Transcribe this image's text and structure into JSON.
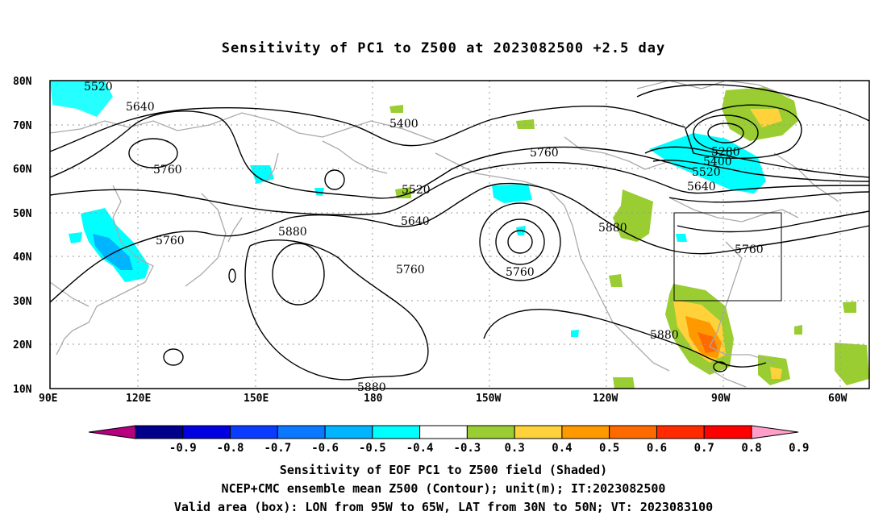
{
  "title": "Sensitivity of PC1 to Z500 at 2023082500 +2.5 day",
  "map": {
    "lon_labels": [
      "90E",
      "120E",
      "150E",
      "180",
      "150W",
      "120W",
      "90W",
      "60W"
    ],
    "lat_labels": [
      "80N",
      "70N",
      "60N",
      "50N",
      "40N",
      "30N",
      "20N",
      "10N"
    ],
    "contour_labels": [
      "5520",
      "5640",
      "5760",
      "5400",
      "5760",
      "5520",
      "5640",
      "5760",
      "5880",
      "5760",
      "5760",
      "5880",
      "5280",
      "5400",
      "5520",
      "5640",
      "5760",
      "5880",
      "5880"
    ],
    "valid_box": {
      "lon_w": "95W",
      "lon_e": "65W",
      "lat_s": "30N",
      "lat_n": "50N"
    }
  },
  "colorbar": {
    "labels": [
      "-0.9",
      "-0.8",
      "-0.7",
      "-0.6",
      "-0.5",
      "-0.4",
      "-0.3",
      "0.3",
      "0.4",
      "0.5",
      "0.6",
      "0.7",
      "0.8",
      "0.9"
    ],
    "colors": [
      "#b5007f",
      "#00008b",
      "#0000e0",
      "#0a3cff",
      "#0a78ff",
      "#00b4ff",
      "#00ffff",
      "#ffffff",
      "#9acd32",
      "#ffd23c",
      "#ff9900",
      "#ff6a00",
      "#ff2a00",
      "#ff0000",
      "#ff9ec8"
    ]
  },
  "captions": {
    "line1": "Sensitivity of EOF PC1 to Z500 field (Shaded)",
    "line2": "NCEP+CMC ensemble mean Z500 (Contour); unit(m); IT:2023082500",
    "line3": "Valid area (box): LON from 95W to 65W, LAT from 30N to 50N; VT: 2023083100"
  }
}
